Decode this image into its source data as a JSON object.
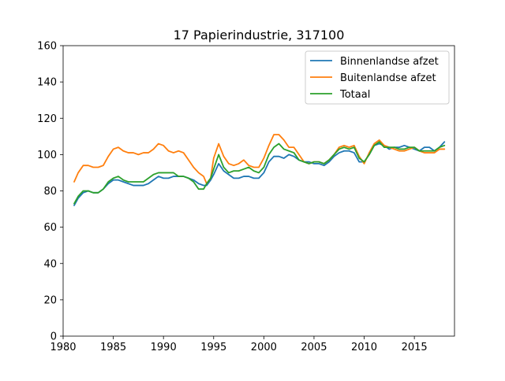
{
  "chart_data": {
    "type": "line",
    "title": "17 Papierindustrie, 317100",
    "xlabel": "",
    "ylabel": "",
    "xlim": [
      1980,
      2019
    ],
    "ylim": [
      0,
      160
    ],
    "xticks": [
      "1980",
      "1985",
      "1990",
      "1995",
      "2000",
      "2005",
      "2010",
      "2015"
    ],
    "yticks": [
      "0",
      "20",
      "40",
      "60",
      "80",
      "100",
      "120",
      "140",
      "160"
    ],
    "grid": false,
    "legend_position": "top-right",
    "series": [
      {
        "name": "Binnenlandse afzet",
        "color": "#1f77b4",
        "x": [
          1981.1,
          1981.5,
          1982.0,
          1982.5,
          1983.0,
          1983.5,
          1984.0,
          1984.5,
          1985.0,
          1985.5,
          1986.0,
          1986.5,
          1987.0,
          1987.5,
          1988.0,
          1988.5,
          1989.0,
          1989.5,
          1990.0,
          1990.5,
          1991.0,
          1991.5,
          1992.0,
          1992.5,
          1993.0,
          1993.5,
          1994.0,
          1994.3,
          1994.7,
          1995.0,
          1995.5,
          1996.0,
          1996.5,
          1997.0,
          1997.5,
          1998.0,
          1998.5,
          1999.0,
          1999.5,
          2000.0,
          2000.5,
          2001.0,
          2001.5,
          2002.0,
          2002.5,
          2003.0,
          2003.5,
          2004.0,
          2004.5,
          2005.0,
          2005.5,
          2006.0,
          2006.5,
          2007.0,
          2007.5,
          2008.0,
          2008.5,
          2009.0,
          2009.5,
          2010.0,
          2010.5,
          2011.0,
          2011.5,
          2012.0,
          2012.5,
          2013.0,
          2013.5,
          2014.0,
          2014.5,
          2015.0,
          2015.5,
          2016.0,
          2016.5,
          2017.0,
          2017.5,
          2018.0
        ],
        "values": [
          72,
          76,
          79,
          80,
          79,
          79,
          81,
          84,
          86,
          86,
          85,
          84,
          83,
          83,
          83,
          84,
          86,
          88,
          87,
          87,
          88,
          88,
          88,
          87,
          86,
          84,
          83,
          83,
          86,
          89,
          95,
          91,
          89,
          87,
          87,
          88,
          88,
          87,
          87,
          90,
          96,
          99,
          99,
          98,
          100,
          99,
          97,
          96,
          96,
          95,
          95,
          94,
          96,
          99,
          101,
          102,
          102,
          101,
          96,
          96,
          100,
          105,
          106,
          105,
          103,
          104,
          104,
          105,
          104,
          103,
          102,
          104,
          104,
          102,
          104,
          107
        ]
      },
      {
        "name": "Buitenlandse afzet",
        "color": "#ff7f0e",
        "x": [
          1981.1,
          1981.5,
          1982.0,
          1982.5,
          1983.0,
          1983.5,
          1984.0,
          1984.5,
          1985.0,
          1985.5,
          1986.0,
          1986.5,
          1987.0,
          1987.5,
          1988.0,
          1988.5,
          1989.0,
          1989.5,
          1990.0,
          1990.5,
          1991.0,
          1991.5,
          1992.0,
          1992.5,
          1993.0,
          1993.5,
          1994.0,
          1994.3,
          1994.7,
          1995.0,
          1995.5,
          1996.0,
          1996.5,
          1997.0,
          1997.5,
          1998.0,
          1998.5,
          1999.0,
          1999.5,
          2000.0,
          2000.5,
          2001.0,
          2001.5,
          2002.0,
          2002.5,
          2003.0,
          2003.5,
          2004.0,
          2004.5,
          2005.0,
          2005.5,
          2006.0,
          2006.5,
          2007.0,
          2007.5,
          2008.0,
          2008.5,
          2009.0,
          2009.5,
          2010.0,
          2010.5,
          2011.0,
          2011.5,
          2012.0,
          2012.5,
          2013.0,
          2013.5,
          2014.0,
          2014.5,
          2015.0,
          2015.5,
          2016.0,
          2016.5,
          2017.0,
          2017.5,
          2018.0
        ],
        "values": [
          85,
          90,
          94,
          94,
          93,
          93,
          94,
          99,
          103,
          104,
          102,
          101,
          101,
          100,
          101,
          101,
          103,
          106,
          105,
          102,
          101,
          102,
          101,
          97,
          93,
          90,
          88,
          84,
          87,
          98,
          106,
          99,
          95,
          94,
          95,
          97,
          94,
          93,
          93,
          98,
          105,
          111,
          111,
          108,
          104,
          104,
          100,
          96,
          95,
          96,
          96,
          95,
          97,
          100,
          104,
          105,
          104,
          105,
          99,
          95,
          101,
          106,
          108,
          105,
          104,
          103,
          102,
          102,
          103,
          104,
          102,
          101,
          101,
          101,
          103,
          103
        ]
      },
      {
        "name": "Totaal",
        "color": "#2ca02c",
        "x": [
          1981.1,
          1981.5,
          1982.0,
          1982.5,
          1983.0,
          1983.5,
          1984.0,
          1984.5,
          1985.0,
          1985.5,
          1986.0,
          1986.5,
          1987.0,
          1987.5,
          1988.0,
          1988.5,
          1989.0,
          1989.5,
          1990.0,
          1990.5,
          1991.0,
          1991.5,
          1992.0,
          1992.5,
          1993.0,
          1993.5,
          1994.0,
          1994.3,
          1994.7,
          1995.0,
          1995.5,
          1996.0,
          1996.5,
          1997.0,
          1997.5,
          1998.0,
          1998.5,
          1999.0,
          1999.5,
          2000.0,
          2000.5,
          2001.0,
          2001.5,
          2002.0,
          2002.5,
          2003.0,
          2003.5,
          2004.0,
          2004.5,
          2005.0,
          2005.5,
          2006.0,
          2006.5,
          2007.0,
          2007.5,
          2008.0,
          2008.5,
          2009.0,
          2009.5,
          2010.0,
          2010.5,
          2011.0,
          2011.5,
          2012.0,
          2012.5,
          2013.0,
          2013.5,
          2014.0,
          2014.5,
          2015.0,
          2015.5,
          2016.0,
          2016.5,
          2017.0,
          2017.5,
          2018.0
        ],
        "values": [
          73,
          77,
          80,
          80,
          79,
          79,
          81,
          85,
          87,
          88,
          86,
          85,
          85,
          85,
          85,
          87,
          89,
          90,
          90,
          90,
          90,
          88,
          88,
          87,
          85,
          81,
          81,
          84,
          87,
          92,
          100,
          93,
          90,
          91,
          91,
          92,
          93,
          91,
          90,
          93,
          100,
          104,
          106,
          103,
          102,
          101,
          97,
          96,
          95,
          96,
          96,
          95,
          97,
          100,
          103,
          104,
          103,
          104,
          98,
          96,
          100,
          105,
          107,
          104,
          104,
          104,
          103,
          103,
          104,
          104,
          102,
          102,
          102,
          102,
          104,
          105
        ]
      }
    ]
  }
}
